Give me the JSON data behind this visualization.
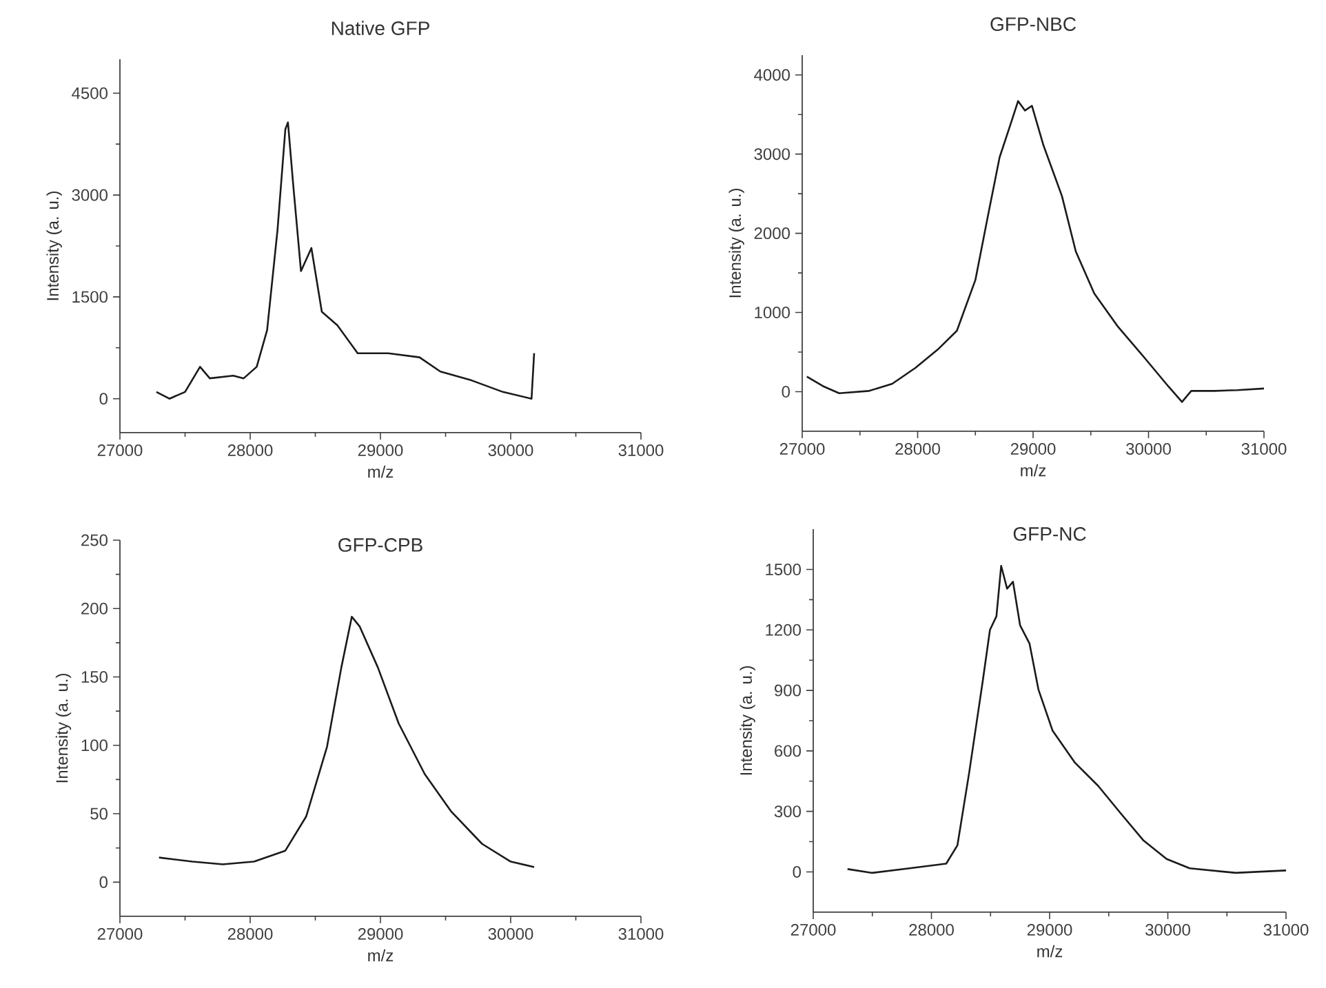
{
  "chart_data": [
    {
      "type": "line",
      "title": "Native GFP",
      "xlabel": "m/z",
      "ylabel": "Intensity (a. u.)",
      "xlim": [
        27000,
        31000
      ],
      "ylim": [
        -500,
        5000
      ],
      "xticks": [
        27000,
        28000,
        29000,
        30000,
        31000
      ],
      "yticks": [
        0,
        1500,
        3000,
        4500
      ],
      "line_style": "solid",
      "x": [
        27280,
        27380,
        27500,
        27615,
        27690,
        27870,
        27950,
        28050,
        28130,
        28210,
        28270,
        28290,
        28330,
        28390,
        28470,
        28550,
        28670,
        28825,
        29060,
        29300,
        29460,
        29700,
        29940,
        30160,
        30180
      ],
      "series": [
        {
          "color": "#1a1a1a",
          "values": [
            100,
            0,
            100,
            470,
            300,
            340,
            300,
            470,
            1010,
            2490,
            3970,
            4070,
            3160,
            1880,
            2220,
            1280,
            1080,
            670,
            670,
            610,
            400,
            270,
            100,
            0,
            670
          ]
        }
      ]
    },
    {
      "type": "line",
      "title": "GFP-NBC",
      "xlabel": "m/z",
      "ylabel": "Intensity (a. u.)",
      "xlim": [
        27000,
        31000
      ],
      "ylim": [
        -500,
        4250
      ],
      "xticks": [
        27000,
        28000,
        29000,
        30000,
        31000
      ],
      "yticks": [
        0,
        1000,
        2000,
        3000,
        4000
      ],
      "line_style": "solid",
      "x": [
        27040,
        27180,
        27320,
        27580,
        27780,
        27980,
        28180,
        28340,
        28500,
        28610,
        28710,
        28810,
        28870,
        28930,
        28990,
        29090,
        29250,
        29370,
        29530,
        29730,
        29970,
        30170,
        30290,
        30370,
        30570,
        30770,
        31000
      ],
      "series": [
        {
          "color": "#1a1a1a",
          "values": [
            190,
            70,
            -20,
            10,
            100,
            300,
            540,
            770,
            1410,
            2230,
            2960,
            3400,
            3670,
            3550,
            3610,
            3110,
            2470,
            1770,
            1240,
            830,
            420,
            70,
            -130,
            10,
            10,
            20,
            40
          ]
        }
      ]
    },
    {
      "type": "line",
      "title": "GFP-CPB",
      "xlabel": "m/z",
      "ylabel": "Intensity (a. u.)",
      "xlim": [
        27000,
        31000
      ],
      "ylim": [
        -25,
        250
      ],
      "xticks": [
        27000,
        28000,
        29000,
        30000,
        31000
      ],
      "yticks": [
        0,
        50,
        100,
        150,
        200,
        250
      ],
      "line_style": "solid",
      "x": [
        27300,
        27555,
        27790,
        28030,
        28270,
        28430,
        28590,
        28700,
        28780,
        28840,
        28980,
        29140,
        29340,
        29540,
        29780,
        30000,
        30180
      ],
      "series": [
        {
          "color": "#1a1a1a",
          "values": [
            18,
            15,
            13,
            15,
            23,
            48,
            99,
            157,
            194,
            187,
            157,
            116,
            79,
            52,
            28,
            15,
            11
          ]
        }
      ]
    },
    {
      "type": "line",
      "title": "GFP-NC",
      "xlabel": "m/z",
      "ylabel": "Intensity (a. u.)",
      "xlim": [
        27000,
        31000
      ],
      "ylim": [
        -200,
        1700
      ],
      "xticks": [
        27000,
        28000,
        29000,
        30000,
        31000
      ],
      "yticks": [
        0,
        300,
        600,
        900,
        1200,
        1500
      ],
      "line_style": "solid",
      "x": [
        27290,
        27500,
        27815,
        28125,
        28220,
        28320,
        28435,
        28495,
        28550,
        28590,
        28640,
        28690,
        28750,
        28830,
        28905,
        29025,
        29215,
        29410,
        29600,
        29795,
        29990,
        30185,
        30575,
        31000
      ],
      "series": [
        {
          "color": "#1a1a1a",
          "values": [
            14,
            -5,
            18,
            41,
            132,
            495,
            950,
            1200,
            1268,
            1518,
            1405,
            1439,
            1223,
            1132,
            905,
            700,
            541,
            427,
            291,
            155,
            64,
            18,
            -5,
            7
          ]
        }
      ]
    }
  ]
}
